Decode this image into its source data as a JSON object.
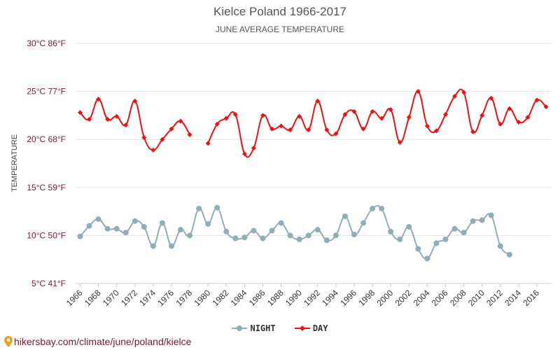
{
  "header": {
    "title": "Kielce Poland 1966-2017",
    "subtitle": "JUNE AVERAGE TEMPERATURE"
  },
  "footer": {
    "url": "hikersbay.com/climate/june/poland/kielce"
  },
  "chart_data": {
    "type": "line",
    "title": "Kielce Poland 1966-2017",
    "subtitle": "JUNE AVERAGE TEMPERATURE",
    "ylabel": "TEMPERATURE",
    "ylim": [
      5,
      30
    ],
    "y_ticks": [
      {
        "value": 30,
        "label": "30°C 86°F"
      },
      {
        "value": 25,
        "label": "25°C 77°F"
      },
      {
        "value": 20,
        "label": "20°C 68°F"
      },
      {
        "value": 15,
        "label": "15°C 59°F"
      },
      {
        "value": 10,
        "label": "10°C 50°F"
      },
      {
        "value": 5,
        "label": "5°C 41°F"
      }
    ],
    "x_ticks": [
      1966,
      1968,
      1970,
      1972,
      1974,
      1976,
      1978,
      1980,
      1982,
      1984,
      1986,
      1988,
      1990,
      1992,
      1994,
      1996,
      1998,
      2000,
      2002,
      2004,
      2006,
      2008,
      2010,
      2012,
      2014,
      2016
    ],
    "x_range": [
      1966,
      2017
    ],
    "grid": true,
    "legend_position": "bottom",
    "series": [
      {
        "name": "NIGHT",
        "color": "#90aeb7",
        "marker": "circle",
        "points": [
          [
            1966,
            9.9
          ],
          [
            1967,
            11.0
          ],
          [
            1968,
            11.7
          ],
          [
            1969,
            10.7
          ],
          [
            1970,
            10.7
          ],
          [
            1971,
            10.3
          ],
          [
            1972,
            11.5
          ],
          [
            1973,
            10.9
          ],
          [
            1974,
            8.9
          ],
          [
            1975,
            11.3
          ],
          [
            1976,
            8.9
          ],
          [
            1977,
            10.6
          ],
          [
            1978,
            10.0
          ],
          [
            1979,
            12.8
          ],
          [
            1980,
            11.2
          ],
          [
            1981,
            12.9
          ],
          [
            1982,
            10.4
          ],
          [
            1983,
            9.7
          ],
          [
            1984,
            9.8
          ],
          [
            1985,
            10.5
          ],
          [
            1986,
            9.7
          ],
          [
            1987,
            10.5
          ],
          [
            1988,
            11.3
          ],
          [
            1989,
            10.0
          ],
          [
            1990,
            9.6
          ],
          [
            1991,
            10.0
          ],
          [
            1992,
            10.6
          ],
          [
            1993,
            9.5
          ],
          [
            1994,
            10.0
          ],
          [
            1995,
            12.0
          ],
          [
            1996,
            10.1
          ],
          [
            1997,
            11.3
          ],
          [
            1998,
            12.8
          ],
          [
            1999,
            12.8
          ],
          [
            2000,
            10.4
          ],
          [
            2001,
            9.6
          ],
          [
            2002,
            10.9
          ],
          [
            2003,
            8.6
          ],
          [
            2004,
            7.6
          ],
          [
            2005,
            9.2
          ],
          [
            2006,
            9.6
          ],
          [
            2007,
            10.7
          ],
          [
            2008,
            10.3
          ],
          [
            2009,
            11.5
          ],
          [
            2010,
            11.6
          ],
          [
            2011,
            12.1
          ],
          [
            2012,
            8.9
          ],
          [
            2013,
            8.0
          ]
        ]
      },
      {
        "name": "DAY",
        "color": "#ee1111",
        "marker": "diamond",
        "segments": [
          [
            [
              1966,
              22.8
            ],
            [
              1967,
              22.1
            ],
            [
              1968,
              24.2
            ],
            [
              1969,
              22.1
            ],
            [
              1970,
              22.4
            ],
            [
              1971,
              21.5
            ],
            [
              1972,
              24.0
            ],
            [
              1973,
              20.2
            ],
            [
              1974,
              18.9
            ],
            [
              1975,
              20.0
            ],
            [
              1976,
              21.1
            ],
            [
              1977,
              21.9
            ],
            [
              1978,
              20.5
            ]
          ],
          [
            [
              1980,
              19.6
            ],
            [
              1981,
              21.6
            ],
            [
              1982,
              22.2
            ],
            [
              1983,
              22.6
            ],
            [
              1984,
              18.5
            ],
            [
              1985,
              19.1
            ],
            [
              1986,
              22.5
            ],
            [
              1987,
              21.1
            ],
            [
              1988,
              21.4
            ],
            [
              1989,
              21.0
            ],
            [
              1990,
              22.4
            ],
            [
              1991,
              21.0
            ],
            [
              1992,
              24.0
            ],
            [
              1993,
              21.0
            ],
            [
              1994,
              20.6
            ],
            [
              1995,
              22.6
            ],
            [
              1996,
              22.9
            ],
            [
              1997,
              21.1
            ],
            [
              1998,
              22.9
            ],
            [
              1999,
              22.2
            ],
            [
              2000,
              23.1
            ],
            [
              2001,
              19.7
            ],
            [
              2002,
              22.3
            ],
            [
              2003,
              25.0
            ],
            [
              2004,
              21.4
            ],
            [
              2005,
              20.9
            ],
            [
              2006,
              22.6
            ],
            [
              2007,
              24.5
            ],
            [
              2008,
              24.9
            ],
            [
              2009,
              20.8
            ],
            [
              2010,
              22.5
            ],
            [
              2011,
              24.3
            ],
            [
              2012,
              21.6
            ],
            [
              2013,
              23.2
            ],
            [
              2014,
              21.8
            ],
            [
              2015,
              22.3
            ],
            [
              2016,
              24.1
            ],
            [
              2017,
              23.4
            ]
          ]
        ]
      }
    ]
  }
}
